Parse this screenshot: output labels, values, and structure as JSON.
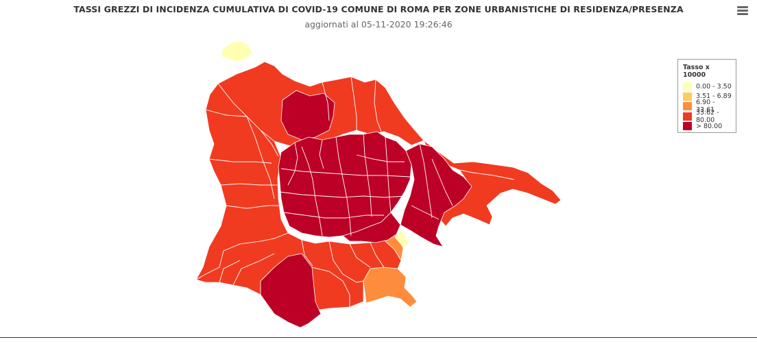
{
  "header": {
    "title": "TASSI GREZZI DI INCIDENZA CUMULATIVA DI COVID-19 COMUNE DI ROMA PER ZONE URBANISTICHE DI RESIDENZA/PRESENZA",
    "subtitle": "aggiornati al 05-11-2020 19:26:46"
  },
  "menu": {
    "icon": "hamburger-menu-icon"
  },
  "legend": {
    "title": "Tasso x 10000",
    "classes": [
      {
        "label": "0.00 - 3.50",
        "color": "#ffffb2"
      },
      {
        "label": "3.51 - 6.89",
        "color": "#fecc5c"
      },
      {
        "label": "6.90 - 33.61",
        "color": "#fd8d3c"
      },
      {
        "label": "33.62 - 80.00",
        "color": "#f03b20"
      },
      {
        "label": "> 80.00",
        "color": "#bd0026"
      }
    ]
  },
  "map": {
    "border_color": "#ffffff",
    "zone_classes": {
      "north_enclave": 0,
      "outer_north": 3,
      "outer_west": 3,
      "outer_east": 3,
      "outer_south": 3,
      "northern_band": 4,
      "central_core": 4,
      "eastern_core": 4,
      "southern_core": 4,
      "southwest_wedge": 4,
      "southeast_small": 0,
      "southeast_area": 2,
      "southeast_strip": 2
    }
  }
}
